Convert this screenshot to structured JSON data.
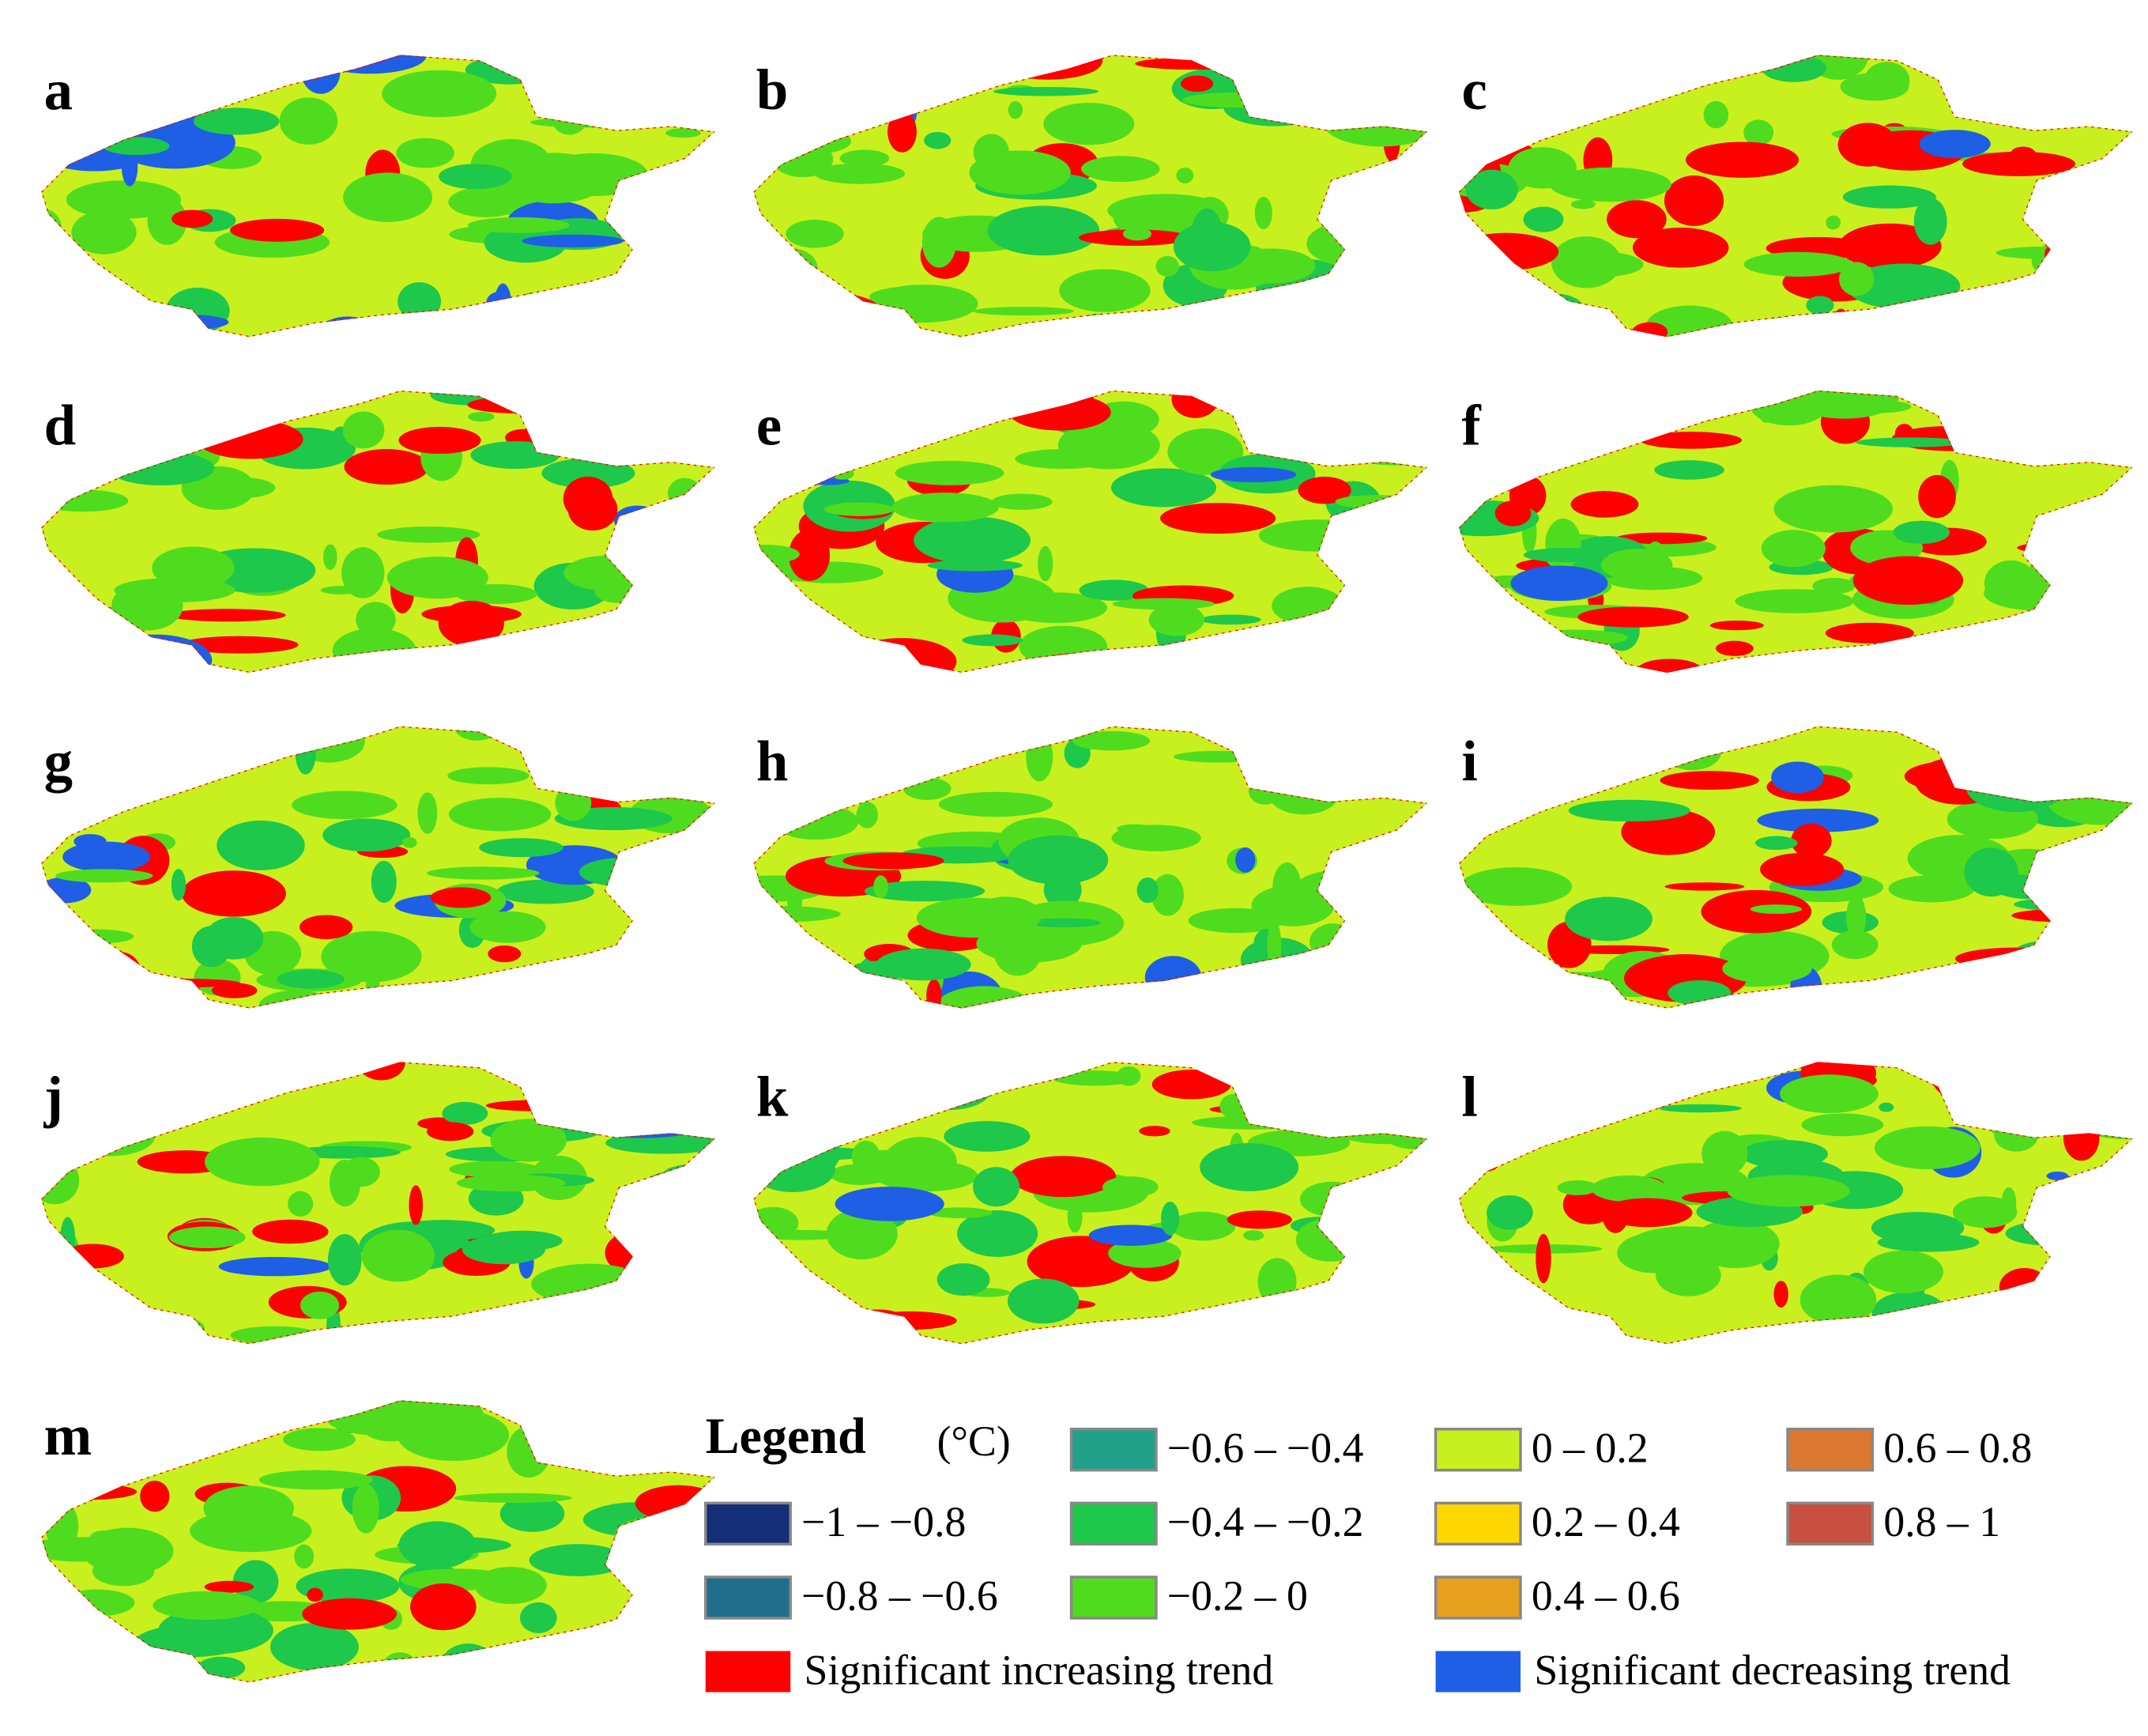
{
  "panels": [
    {
      "label": "a"
    },
    {
      "label": "b"
    },
    {
      "label": "c"
    },
    {
      "label": "d"
    },
    {
      "label": "e"
    },
    {
      "label": "f"
    },
    {
      "label": "g"
    },
    {
      "label": "h"
    },
    {
      "label": "i"
    },
    {
      "label": "j"
    },
    {
      "label": "k"
    },
    {
      "label": "l"
    },
    {
      "label": "m"
    }
  ],
  "legend": {
    "title": "Legend",
    "unit": "(°C)",
    "items": [
      {
        "label": "−1 – −0.8",
        "color": "#142e78"
      },
      {
        "label": "−0.8 – −0.6",
        "color": "#1e6e8c"
      },
      {
        "label": "−0.6 – −0.4",
        "color": "#21a08a"
      },
      {
        "label": "−0.4 – −0.2",
        "color": "#1ec84a"
      },
      {
        "label": "−0.2 – 0",
        "color": "#50dc1e"
      },
      {
        "label": "0 – 0.2",
        "color": "#c8f01e"
      },
      {
        "label": "0.2 – 0.4",
        "color": "#ffd700"
      },
      {
        "label": "0.4 – 0.6",
        "color": "#e6a01e"
      },
      {
        "label": "0.6 – 0.8",
        "color": "#dc7830"
      },
      {
        "label": "0.8 – 1",
        "color": "#c85040"
      }
    ],
    "significance": [
      {
        "label": "Significant increasing trend",
        "color": "#ff0000"
      },
      {
        "label": "Significant decreasing trend",
        "color": "#1e5fe6"
      }
    ]
  }
}
